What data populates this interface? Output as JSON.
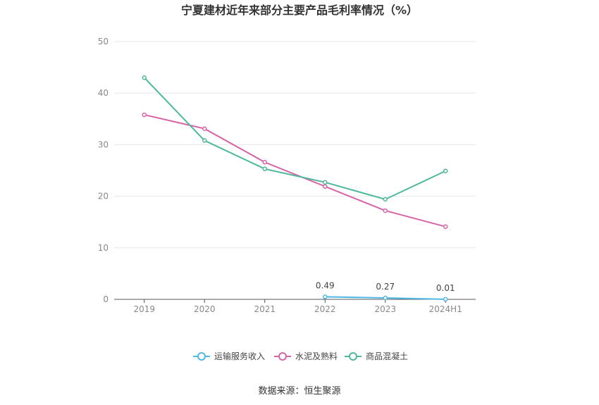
{
  "chart_data": {
    "type": "line",
    "title": "宁夏建材近年来部分主要产品毛利率情况（%）",
    "categories": [
      "2019",
      "2020",
      "2021",
      "2022",
      "2023",
      "2024H1"
    ],
    "ylim": [
      0,
      50
    ],
    "yticks": [
      "0",
      "10",
      "20",
      "30",
      "40",
      "50"
    ],
    "grid": true,
    "legend_position": "bottom",
    "series": [
      {
        "name": "运输服务收入",
        "color": "#4fb8e6",
        "values": [
          null,
          null,
          null,
          0.49,
          0.27,
          0.01
        ],
        "labels": [
          "",
          "",
          "",
          "0.49",
          "0.27",
          "0.01"
        ]
      },
      {
        "name": "水泥及熟料",
        "color": "#d864a8",
        "values": [
          35.8,
          33.1,
          26.6,
          21.9,
          17.2,
          14.1
        ]
      },
      {
        "name": "商品混凝土",
        "color": "#4db89a",
        "values": [
          43.0,
          30.8,
          25.3,
          22.7,
          19.4,
          24.9
        ]
      }
    ],
    "source": "数据来源：恒生聚源"
  }
}
